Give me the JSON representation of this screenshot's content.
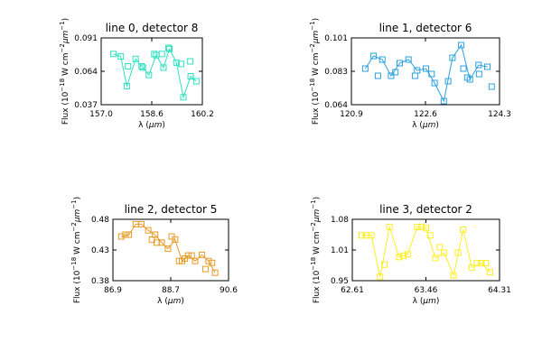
{
  "axis_text": {
    "ylabel_prefix": "Flux (10",
    "ylabel_exp1": "−18",
    "ylabel_mid": " W cm",
    "ylabel_exp2": "−2",
    "ylabel_mu": "μm",
    "ylabel_exp3": "−1",
    "ylabel_suffix": ")",
    "xlabel_lambda": "λ (",
    "xlabel_mu": "μm",
    "xlabel_suffix": ")"
  },
  "chart_data": [
    {
      "type": "line",
      "title": "line 0, detector 8",
      "xlabel": "λ (μm)",
      "ylabel": "Flux (10^-18 W cm^-2 μm^-1)",
      "color": "#2ee0c0",
      "xlim": [
        157.0,
        160.2
      ],
      "ylim": [
        0.037,
        0.091
      ],
      "xticks": [
        "157.0",
        "158.6",
        "160.2"
      ],
      "yticks": [
        "0.037",
        "0.064",
        "0.091"
      ],
      "x": [
        157.39,
        157.62,
        157.81,
        158.09,
        158.32,
        158.51,
        158.74,
        158.97,
        159.16,
        159.38,
        159.6,
        159.83,
        160.01
      ],
      "y": [
        0.078,
        0.076,
        0.052,
        0.074,
        0.067,
        0.061,
        0.077,
        0.067,
        0.082,
        0.071,
        0.043,
        0.06,
        0.056
      ],
      "x_extra": [
        157.85,
        158.28,
        158.68,
        158.92,
        159.13,
        159.53,
        159.82
      ],
      "y_extra": [
        0.068,
        0.068,
        0.078,
        0.078,
        0.083,
        0.07,
        0.072
      ]
    },
    {
      "type": "line",
      "title": "line 1, detector 6",
      "xlabel": "λ (μm)",
      "ylabel": "Flux (10^-18 W cm^-2 μm^-1)",
      "color": "#2ba0dc",
      "xlim": [
        120.9,
        124.3
      ],
      "ylim": [
        0.064,
        0.101
      ],
      "xticks": [
        "120.9",
        "122.6",
        "124.3"
      ],
      "yticks": [
        "0.064",
        "0.083",
        "0.101"
      ],
      "x": [
        121.22,
        121.41,
        121.61,
        121.81,
        122.01,
        122.21,
        122.41,
        122.61,
        122.81,
        123.02,
        123.22,
        123.42,
        123.62,
        123.82,
        124.02
      ],
      "y": [
        0.084,
        0.091,
        0.089,
        0.08,
        0.087,
        0.089,
        0.083,
        0.084,
        0.076,
        0.066,
        0.09,
        0.097,
        0.078,
        0.086,
        0.085
      ],
      "x_extra": [
        121.51,
        121.91,
        122.36,
        122.74,
        123.12,
        123.47,
        123.56,
        123.83,
        124.12
      ],
      "y_extra": [
        0.08,
        0.082,
        0.08,
        0.081,
        0.077,
        0.084,
        0.079,
        0.081,
        0.074
      ]
    },
    {
      "type": "line",
      "title": "line 2, detector 5",
      "xlabel": "λ (μm)",
      "ylabel": "Flux (10^-18 W cm^-2 μm^-1)",
      "color": "#e89a26",
      "xlim": [
        86.9,
        90.6
      ],
      "ylim": [
        0.38,
        0.48
      ],
      "xticks": [
        "86.9",
        "88.7",
        "90.6"
      ],
      "yticks": [
        "0.38",
        "0.43",
        "0.48"
      ],
      "x": [
        87.17,
        87.41,
        87.63,
        87.81,
        88.03,
        88.25,
        88.46,
        88.66,
        88.89,
        89.11,
        89.31,
        89.53,
        89.75,
        89.96,
        90.17
      ],
      "y": [
        0.452,
        0.455,
        0.472,
        0.472,
        0.462,
        0.455,
        0.442,
        0.432,
        0.447,
        0.412,
        0.421,
        0.412,
        0.422,
        0.412,
        0.393
      ],
      "x_extra": [
        87.3,
        88.15,
        88.3,
        88.78,
        89.02,
        89.2,
        89.42,
        89.86,
        90.07
      ],
      "y_extra": [
        0.455,
        0.447,
        0.442,
        0.452,
        0.412,
        0.416,
        0.421,
        0.399,
        0.409
      ]
    },
    {
      "type": "line",
      "title": "line 3, detector 2",
      "xlabel": "λ (μm)",
      "ylabel": "Flux (10^-18 W cm^-2 μm^-1)",
      "color": "#ffee22",
      "xlim": [
        62.61,
        64.31
      ],
      "ylim": [
        0.95,
        1.08
      ],
      "xticks": [
        "62.61",
        "63.46",
        "64.31"
      ],
      "yticks": [
        "0.95",
        "1.01",
        "1.08"
      ],
      "x": [
        62.72,
        62.83,
        62.93,
        63.04,
        63.15,
        63.25,
        63.36,
        63.46,
        63.57,
        63.67,
        63.78,
        63.89,
        63.99,
        64.1,
        64.2
      ],
      "y": [
        1.046,
        1.046,
        0.958,
        1.064,
        1.0,
        1.006,
        1.064,
        1.061,
        0.998,
        1.009,
        0.961,
        1.058,
        0.978,
        0.987,
        0.968
      ],
      "x_extra": [
        62.77,
        62.98,
        63.2,
        63.41,
        63.51,
        63.62,
        63.83,
        64.05,
        64.15
      ],
      "y_extra": [
        1.046,
        0.984,
        1.003,
        1.064,
        1.046,
        1.021,
        1.009,
        0.987,
        0.987
      ]
    }
  ]
}
